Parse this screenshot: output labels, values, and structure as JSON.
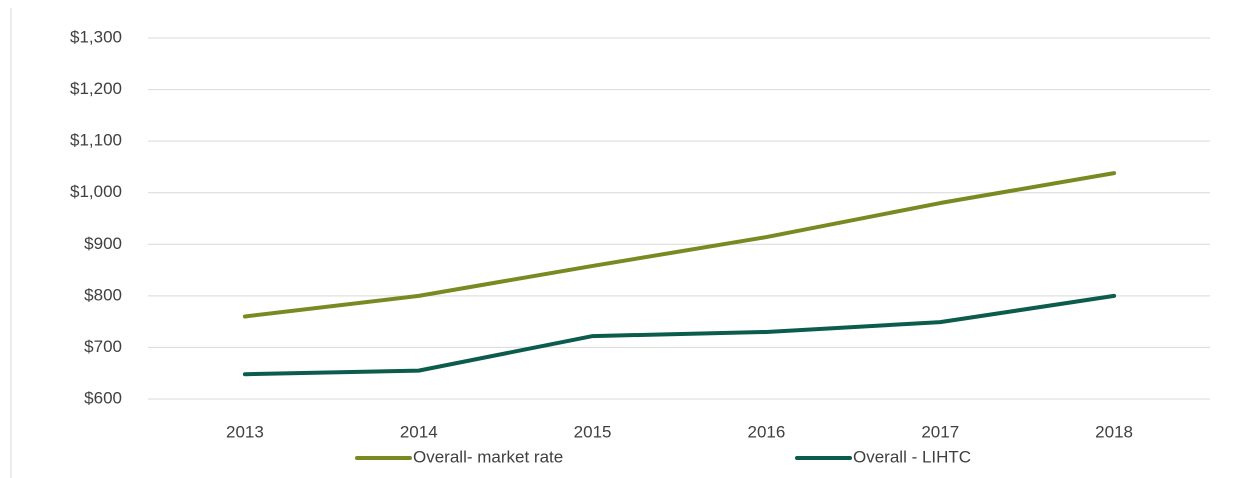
{
  "chart_data": {
    "type": "line",
    "categories": [
      "2013",
      "2014",
      "2015",
      "2016",
      "2017",
      "2018"
    ],
    "series": [
      {
        "name": "Overall- market rate",
        "color": "#7a8a23",
        "values": [
          760,
          800,
          858,
          914,
          980,
          1038
        ]
      },
      {
        "name": "Overall - LIHTC",
        "color": "#0b5c4c",
        "values": [
          648,
          655,
          722,
          730,
          749,
          800
        ]
      }
    ],
    "ylim": [
      600,
      1300
    ],
    "yticks": [
      {
        "value": 600,
        "label": "$600"
      },
      {
        "value": 700,
        "label": "$700"
      },
      {
        "value": 800,
        "label": "$800"
      },
      {
        "value": 900,
        "label": "$900"
      },
      {
        "value": 1000,
        "label": "$1,000"
      },
      {
        "value": 1100,
        "label": "$1,100"
      },
      {
        "value": 1200,
        "label": "$1,200"
      },
      {
        "value": 1300,
        "label": "$1,300"
      }
    ],
    "grid": true,
    "legend": "bottom"
  }
}
